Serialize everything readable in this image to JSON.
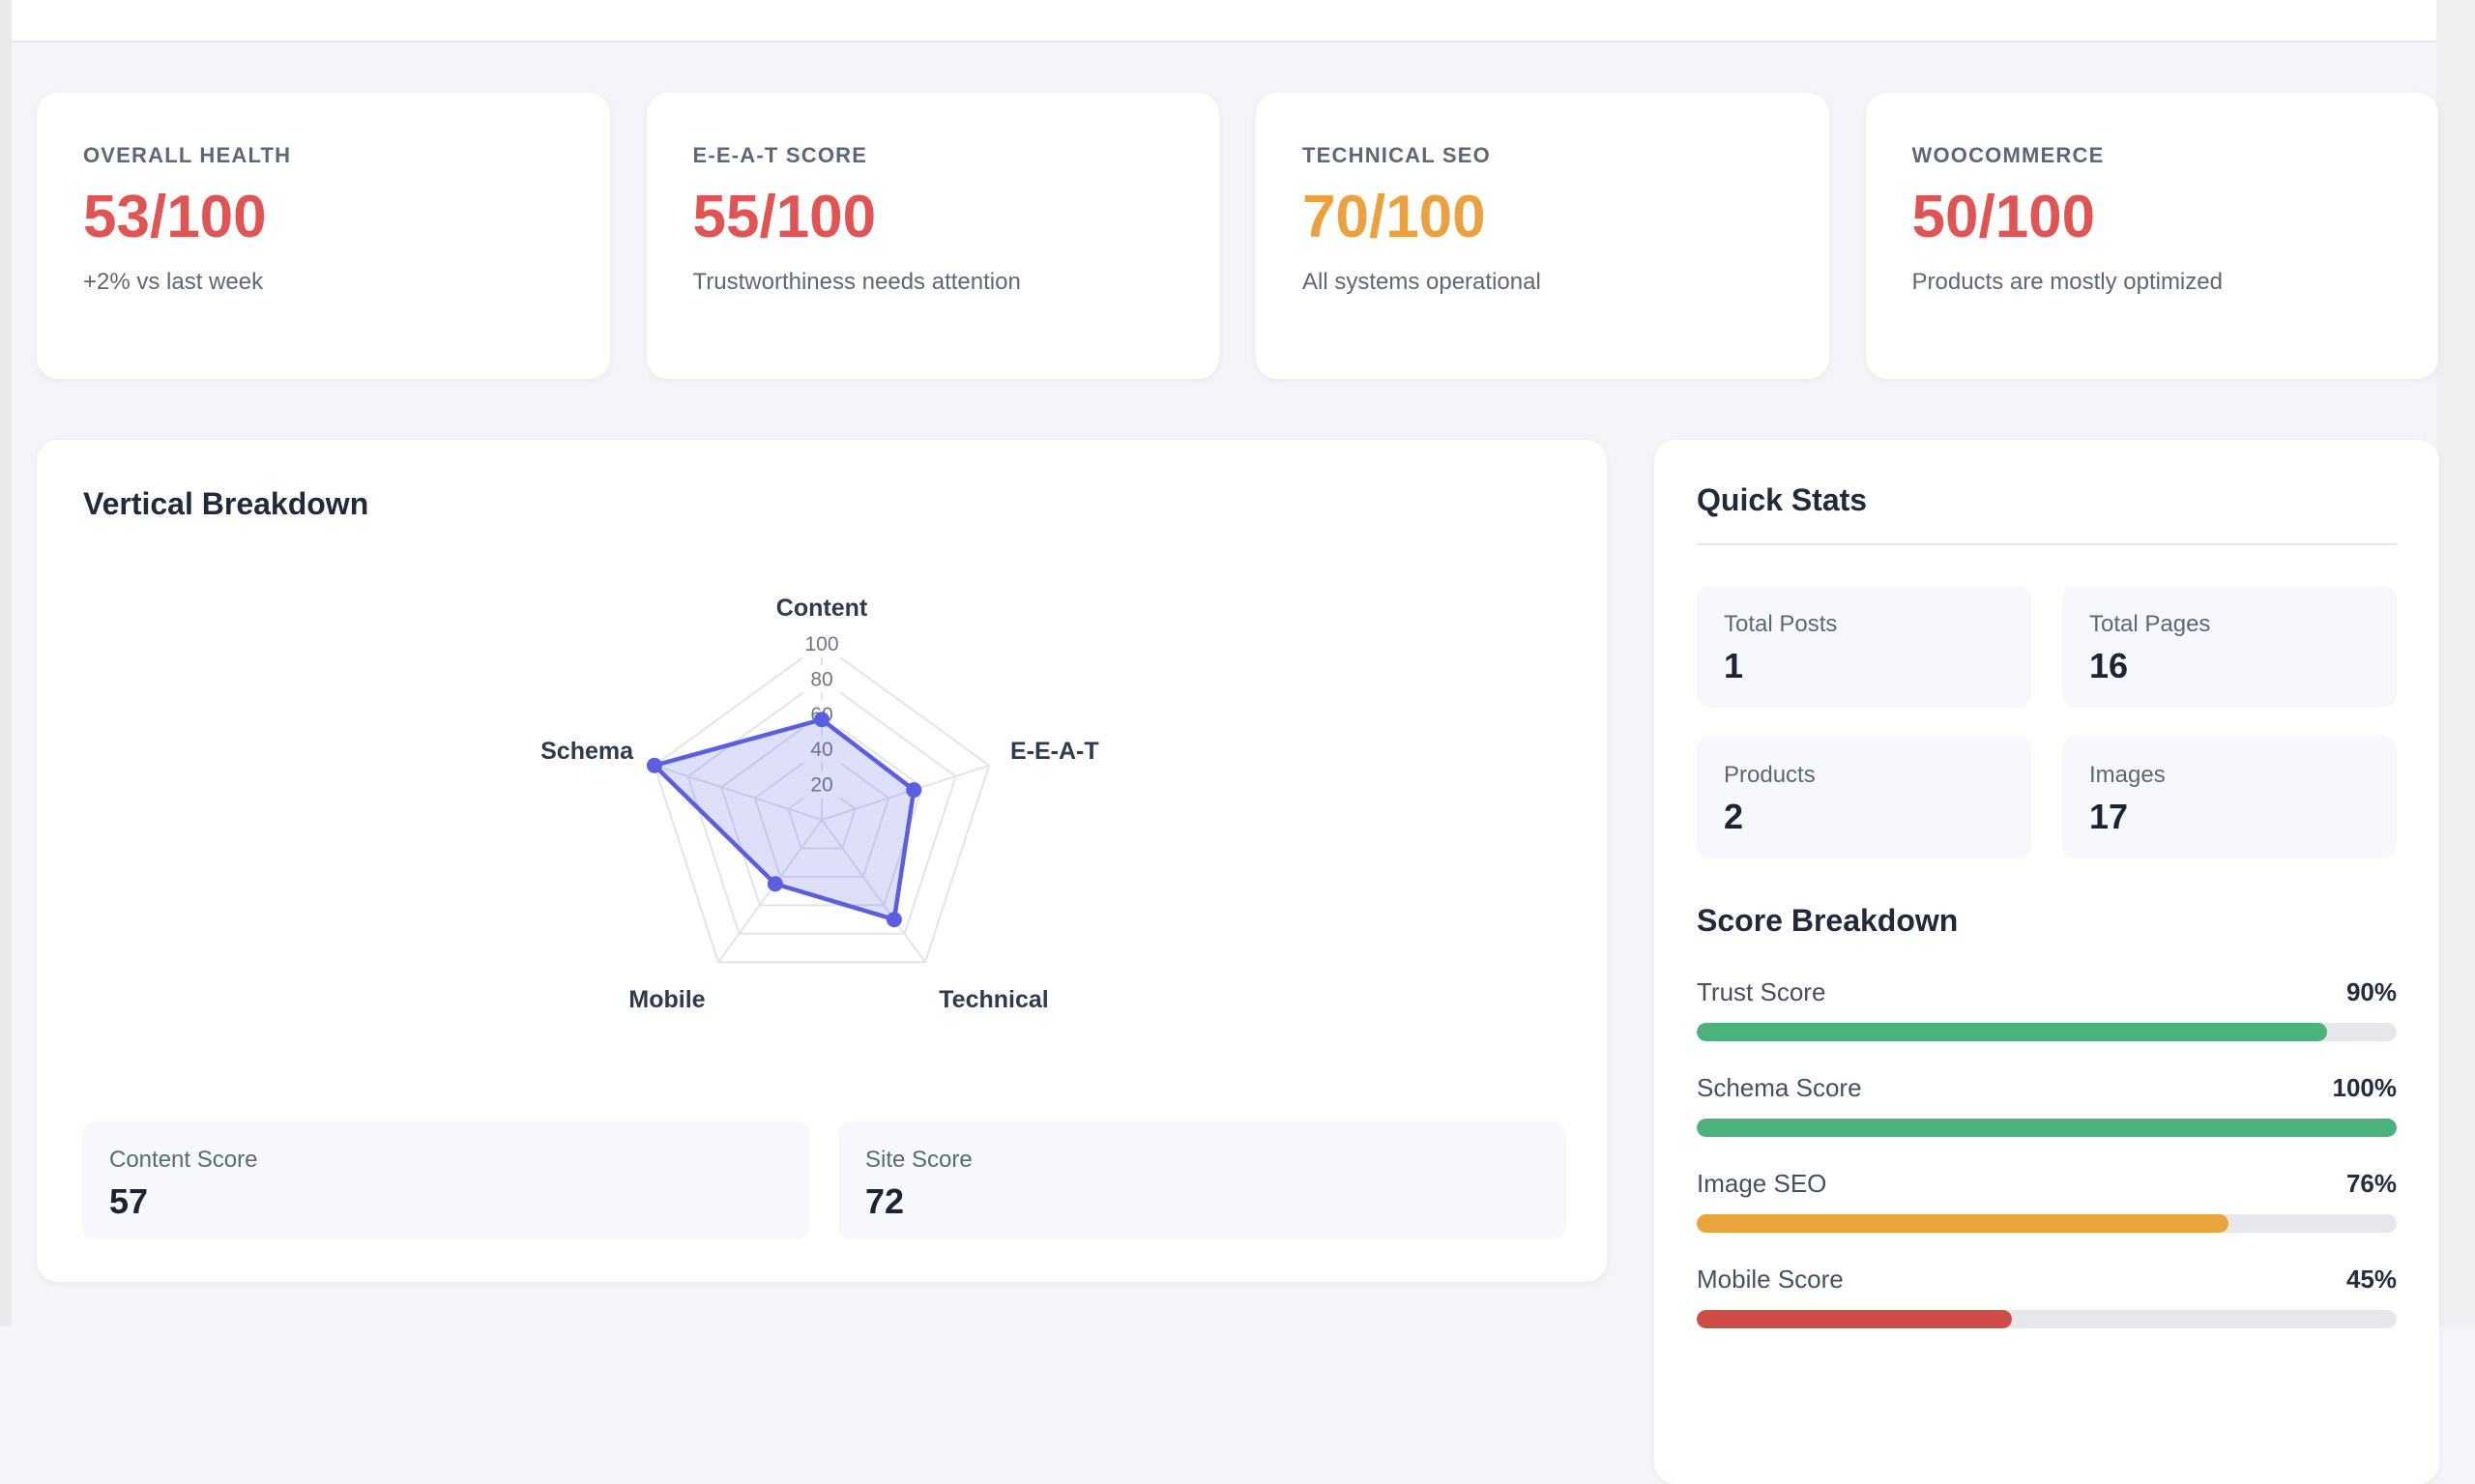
{
  "summary_cards": [
    {
      "title": "OVERALL HEALTH",
      "value": "53/100",
      "value_color": "#e15454",
      "subtitle": "+2% vs last week"
    },
    {
      "title": "E-E-A-T SCORE",
      "value": "55/100",
      "value_color": "#e15454",
      "subtitle": "Trustworthiness needs attention"
    },
    {
      "title": "TECHNICAL SEO",
      "value": "70/100",
      "value_color": "#eba23e",
      "subtitle": "All systems operational"
    },
    {
      "title": "WOOCOMMERCE",
      "value": "50/100",
      "value_color": "#e15454",
      "subtitle": "Products are mostly optimized"
    }
  ],
  "vertical_breakdown": {
    "title": "Vertical Breakdown",
    "footer_stats": [
      {
        "label": "Content Score",
        "value": "57"
      },
      {
        "label": "Site Score",
        "value": "72"
      }
    ]
  },
  "chart_data": {
    "type": "radar",
    "categories": [
      "Content",
      "E-E-A-T",
      "Technical",
      "Mobile",
      "Schema"
    ],
    "values": [
      57,
      55,
      70,
      45,
      100
    ],
    "scale": {
      "min": 0,
      "max": 100,
      "ticks": [
        20,
        40,
        60,
        80,
        100
      ]
    },
    "grid": "on",
    "legend": "none",
    "colors": {
      "line": "#5a5ee0",
      "fill": "rgba(90,94,224,0.2)",
      "grid": "#e3e4eb",
      "tick_text": "#6f7787",
      "label_text": "#2f3a4c"
    }
  },
  "quick_stats": {
    "title": "Quick Stats",
    "stats": [
      {
        "label": "Total Posts",
        "value": "1"
      },
      {
        "label": "Total Pages",
        "value": "16"
      },
      {
        "label": "Products",
        "value": "2"
      },
      {
        "label": "Images",
        "value": "17"
      }
    ]
  },
  "score_breakdown": {
    "title": "Score Breakdown",
    "rows": [
      {
        "label": "Trust Score",
        "value": "90%",
        "color": "#4cb27c"
      },
      {
        "label": "Schema Score",
        "value": "100%",
        "color": "#4cb27c"
      },
      {
        "label": "Image SEO",
        "value": "76%",
        "color": "#e9a43c"
      },
      {
        "label": "Mobile Score",
        "value": "45%",
        "color": "#d04b46"
      }
    ]
  }
}
